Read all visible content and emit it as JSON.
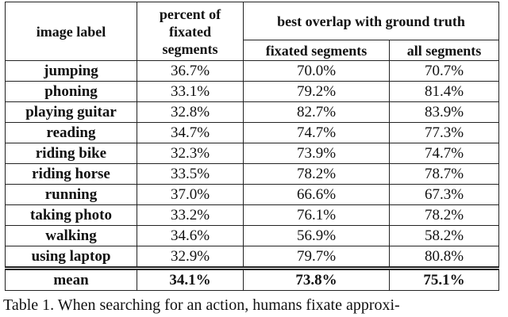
{
  "table": {
    "header": [
      "image label",
      "percent of fixated segments",
      "best overlap with ground truth"
    ],
    "subheader": [
      "fixated segments",
      "all segments"
    ],
    "rows": [
      [
        "jumping",
        "36.7%",
        "70.0%",
        "70.7%"
      ],
      [
        "phoning",
        "33.1%",
        "79.2%",
        "81.4%"
      ],
      [
        "playing guitar",
        "32.8%",
        "82.7%",
        "83.9%"
      ],
      [
        "reading",
        "34.7%",
        "74.7%",
        "77.3%"
      ],
      [
        "riding bike",
        "32.3%",
        "73.9%",
        "74.7%"
      ],
      [
        "riding horse",
        "33.5%",
        "78.2%",
        "78.7%"
      ],
      [
        "running",
        "37.0%",
        "66.6%",
        "67.3%"
      ],
      [
        "taking photo",
        "33.2%",
        "76.1%",
        "78.2%"
      ],
      [
        "walking",
        "34.6%",
        "56.9%",
        "58.2%"
      ],
      [
        "using laptop",
        "32.9%",
        "79.7%",
        "80.8%"
      ]
    ],
    "mean": [
      "mean",
      "34.1%",
      "73.8%",
      "75.1%"
    ]
  },
  "caption": "Table 1. When searching for an action, humans fixate approxi-"
}
